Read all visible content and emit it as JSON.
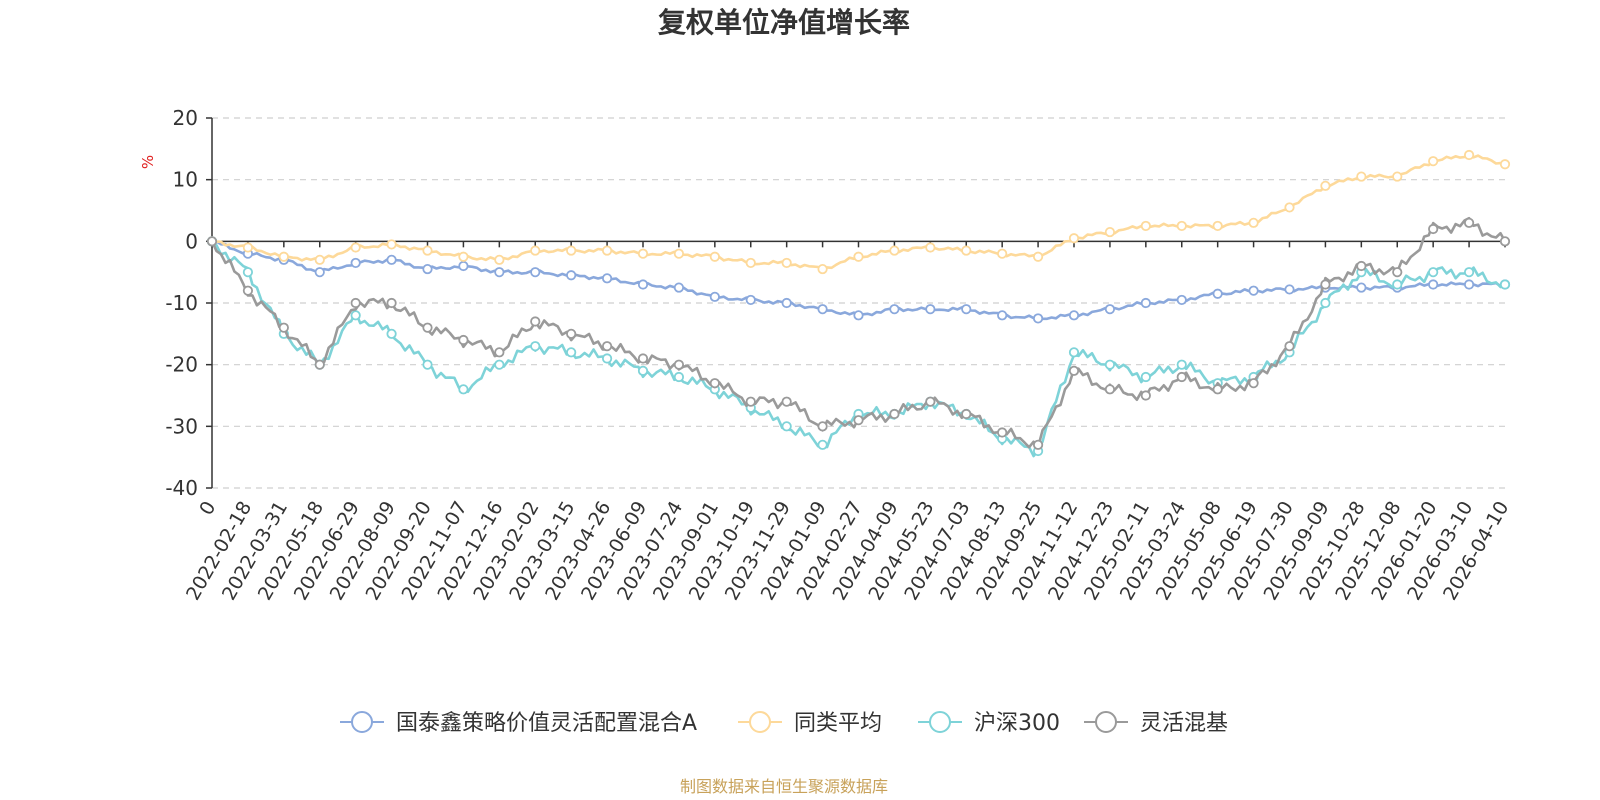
{
  "chart_data": {
    "type": "line",
    "title": "复权单位净值增长率",
    "ylabel": "%",
    "ylim": [
      -40,
      20
    ],
    "yticks": [
      20,
      10,
      0,
      -10,
      -20,
      -30,
      -40
    ],
    "categories": [
      "0",
      "2022-02-18",
      "2022-03-31",
      "2022-05-18",
      "2022-06-29",
      "2022-08-09",
      "2022-09-20",
      "2022-11-07",
      "2022-12-16",
      "2023-02-02",
      "2023-03-15",
      "2023-04-26",
      "2023-06-09",
      "2023-07-24",
      "2023-09-01",
      "2023-10-19",
      "2023-11-29",
      "2024-01-09",
      "2024-02-27",
      "2024-04-09",
      "2024-05-23",
      "2024-07-03",
      "2024-08-13",
      "2024-09-25",
      "2024-11-12",
      "2024-12-23",
      "2025-02-11",
      "2025-03-24",
      "2025-05-08",
      "2025-06-19",
      "2025-07-30",
      "2025-09-09",
      "2025-10-28",
      "2025-12-08",
      "2026-01-20",
      "2026-03-10",
      "2026-04-10"
    ],
    "series": [
      {
        "name": "国泰鑫策略价值灵活配置混合A",
        "color": "#8aa8dc",
        "values": [
          0,
          -2,
          -3,
          -5,
          -3.5,
          -3,
          -4.5,
          -4,
          -5,
          -5,
          -5.5,
          -6,
          -7,
          -7.5,
          -9,
          -9.5,
          -10,
          -11,
          -12,
          -11,
          -11,
          -11,
          -12,
          -12.5,
          -12,
          -11,
          -10,
          -9.5,
          -8.5,
          -8,
          -7.8,
          -7.5,
          -7.5,
          -7.5,
          -7,
          -7,
          -7
        ]
      },
      {
        "name": "同类平均",
        "color": "#fdd99a",
        "values": [
          0,
          -1,
          -2.5,
          -3,
          -1,
          -0.5,
          -1.5,
          -2.5,
          -3,
          -1.5,
          -1.5,
          -1.5,
          -2,
          -2,
          -2.5,
          -3.5,
          -3.5,
          -4.5,
          -2.5,
          -1.5,
          -1,
          -1.5,
          -2,
          -2.5,
          0.5,
          1.5,
          2.5,
          2.5,
          2.5,
          3,
          5.5,
          9,
          10.5,
          10.5,
          13,
          14,
          12.5
        ]
      },
      {
        "name": "沪深300",
        "color": "#7ed3d8",
        "values": [
          0,
          -5,
          -15,
          -20,
          -12,
          -15,
          -20,
          -24,
          -20,
          -17,
          -18,
          -19,
          -21,
          -22,
          -24,
          -27,
          -30,
          -33,
          -28,
          -28,
          -26,
          -28,
          -32,
          -34,
          -18,
          -20,
          -22,
          -20,
          -23,
          -22,
          -18,
          -10,
          -5,
          -7,
          -5,
          -5,
          -7
        ]
      },
      {
        "name": "灵活混基",
        "color": "#9a9a9a",
        "values": [
          0,
          -8,
          -14,
          -20,
          -10,
          -10,
          -14,
          -16,
          -18,
          -13,
          -15,
          -17,
          -19,
          -20,
          -23,
          -26,
          -26,
          -30,
          -29,
          -28,
          -26,
          -28,
          -31,
          -33,
          -21,
          -24,
          -25,
          -22,
          -24,
          -23,
          -17,
          -7,
          -4,
          -5,
          2,
          3,
          0
        ]
      }
    ],
    "legend_position": "bottom",
    "grid": true
  },
  "source_note": "制图数据来自恒生聚源数据库"
}
